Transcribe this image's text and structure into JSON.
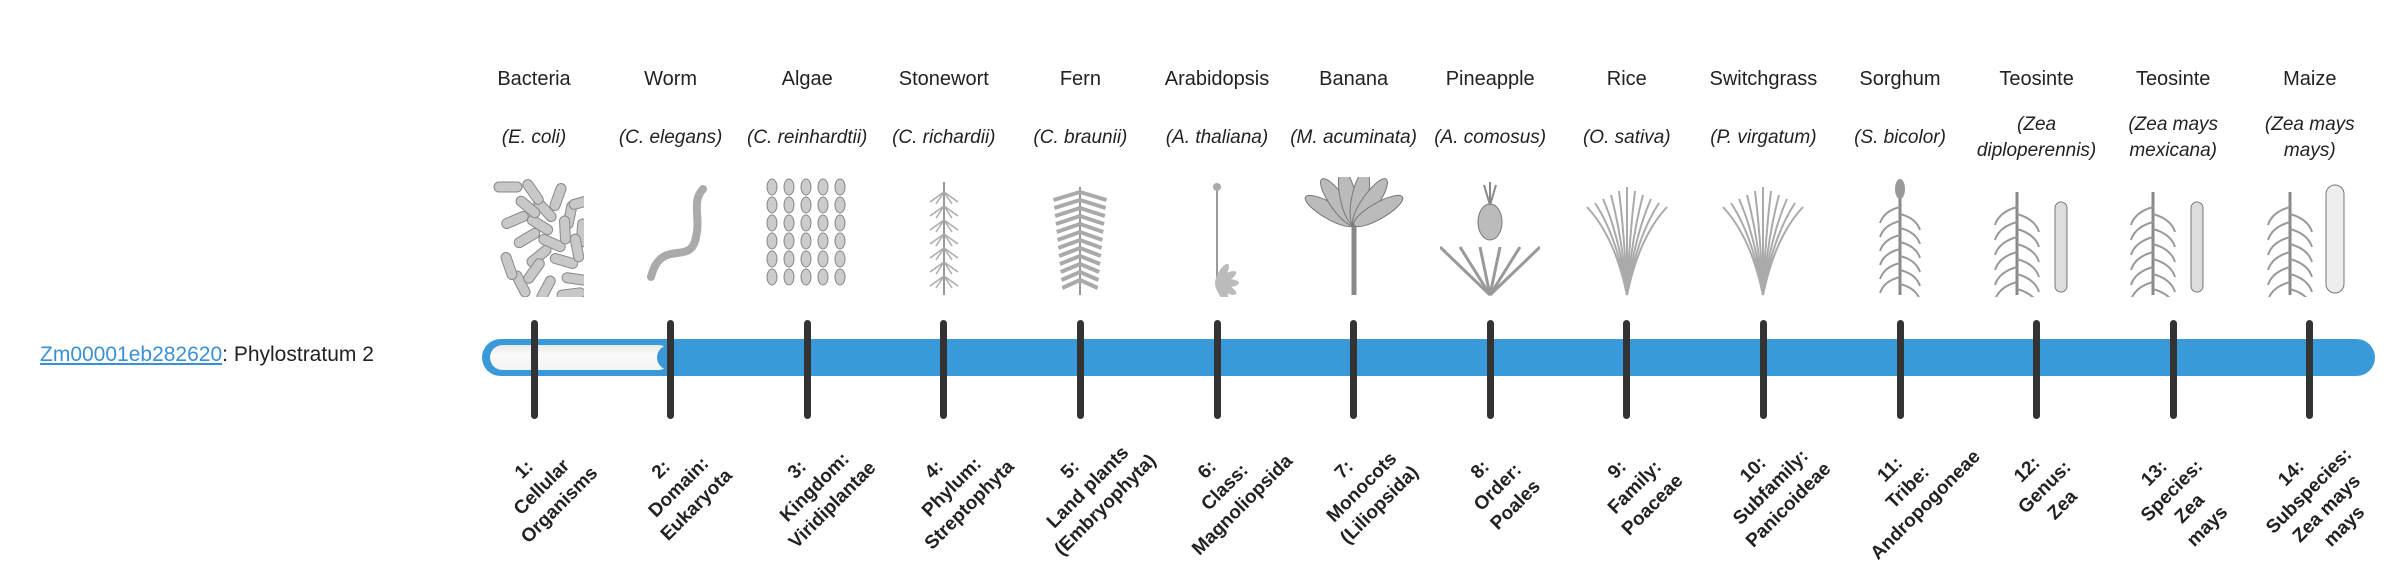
{
  "gene": {
    "id": "Zm00001eb282620",
    "separator": ": ",
    "label": "Phylostratum 2"
  },
  "progress": {
    "phylostratum": 2,
    "total": 14
  },
  "colors": {
    "bar": "#3a9ad9",
    "tick": "#333333",
    "link": "#3a8fd6"
  },
  "organisms": [
    {
      "common": "Bacteria",
      "sci": "(E. coli)",
      "icon": "bacteria-icon",
      "kind": "bacteria"
    },
    {
      "common": "Worm",
      "sci": "(C. elegans)",
      "icon": "worm-icon",
      "kind": "worm"
    },
    {
      "common": "Algae",
      "sci": "(C. reinhardtii)",
      "icon": "algae-icon",
      "kind": "algae"
    },
    {
      "common": "Stonewort",
      "sci": "(C. richardii)",
      "icon": "stonewort-icon",
      "kind": "stonewort"
    },
    {
      "common": "Fern",
      "sci": "(C. braunii)",
      "icon": "fern-icon",
      "kind": "fern"
    },
    {
      "common": "Arabidopsis",
      "sci": "(A. thaliana)",
      "icon": "arabidopsis-icon",
      "kind": "herb"
    },
    {
      "common": "Banana",
      "sci": "(M. acuminata)",
      "icon": "banana-icon",
      "kind": "banana"
    },
    {
      "common": "Pineapple",
      "sci": "(A. comosus)",
      "icon": "pineapple-icon",
      "kind": "pineapple"
    },
    {
      "common": "Rice",
      "sci": "(O. sativa)",
      "icon": "rice-icon",
      "kind": "grass"
    },
    {
      "common": "Switchgrass",
      "sci": "(P. virgatum)",
      "icon": "switchgrass-icon",
      "kind": "grass"
    },
    {
      "common": "Sorghum",
      "sci": "(S. bicolor)",
      "icon": "sorghum-icon",
      "kind": "corn"
    },
    {
      "common": "Teosinte",
      "sci": "(Zea diploperennis)",
      "icon": "teosinte-icon",
      "kind": "teosinte"
    },
    {
      "common": "Teosinte",
      "sci": "(Zea mays mexicana)",
      "icon": "teosinte-icon",
      "kind": "teosinte"
    },
    {
      "common": "Maize",
      "sci": "(Zea mays mays)",
      "icon": "maize-icon",
      "kind": "maize"
    }
  ],
  "strata": [
    [
      "1:",
      "Cellular",
      "Organisms"
    ],
    [
      "2:",
      "Domain:",
      "Eukaryota"
    ],
    [
      "3:",
      "Kingdom:",
      "Viridiplantae"
    ],
    [
      "4:",
      "Phylum:",
      "Streptophyta"
    ],
    [
      "5:",
      "Land plants",
      "(Embryophyta)"
    ],
    [
      "6:",
      "Class:",
      "Magnoliopsida"
    ],
    [
      "7:",
      "Monocots",
      "(Liliopsida)"
    ],
    [
      "8:",
      "Order:",
      "Poales"
    ],
    [
      "9:",
      "Family:",
      "Poaceae"
    ],
    [
      "10:",
      "Subfamily:",
      "Panicoideae"
    ],
    [
      "11:",
      "Tribe:",
      "Andropogoneae"
    ],
    [
      "12:",
      "Genus:",
      "Zea"
    ],
    [
      "13:",
      "Species:",
      "Zea",
      "mays"
    ],
    [
      "14:",
      "Subspecies:",
      "Zea mays",
      "mays"
    ]
  ]
}
